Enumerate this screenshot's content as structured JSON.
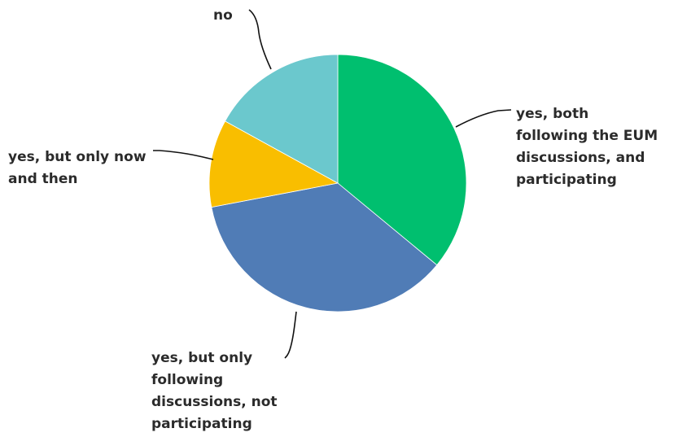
{
  "chart_data": {
    "type": "pie",
    "title": "",
    "slices": [
      {
        "label": "yes, both following the EUM discussions, and participating",
        "value": 36,
        "color": "#00BF6F"
      },
      {
        "label": "yes, but only following discussions, not participating",
        "value": 36,
        "color": "#507CB6"
      },
      {
        "label": "yes, but only now and then",
        "value": 11,
        "color": "#F9BE00"
      },
      {
        "label": "no",
        "value": 17,
        "color": "#6BC8CD"
      }
    ],
    "start_angle_deg": 0,
    "direction": "clockwise",
    "legend": "none"
  }
}
